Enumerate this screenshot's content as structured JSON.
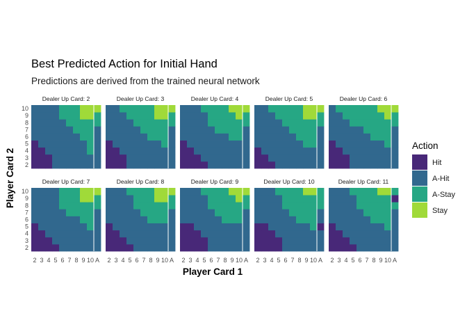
{
  "chart_data": {
    "type": "heatmap",
    "title": "Best Predicted Action for Initial Hand",
    "subtitle": "Predictions are derived from the trained neural network",
    "xlabel": "Player Card 1",
    "ylabel": "Player Card 2",
    "x_categories": [
      "2",
      "3",
      "4",
      "5",
      "6",
      "7",
      "8",
      "9",
      "10",
      "A"
    ],
    "y_categories": [
      "2",
      "3",
      "4",
      "5",
      "6",
      "7",
      "8",
      "9",
      "10"
    ],
    "x_tick_labels": [
      "2",
      "3",
      "4",
      "5",
      "6",
      "7",
      "8",
      "9",
      "10",
      "A"
    ],
    "legend": {
      "title": "Action",
      "position": "right",
      "items": [
        {
          "label": "Hit",
          "color": "#482878"
        },
        {
          "label": "A-Hit",
          "color": "#31688e"
        },
        {
          "label": "A-Stay",
          "color": "#26a784"
        },
        {
          "label": "Stay",
          "color": "#a0da39"
        }
      ]
    },
    "grid": true,
    "panel_rows": [
      [
        {
          "label": "Dealer Up Card: 2",
          "rows": [
            "HHHAAAAAAA",
            "HHHAAAAAAA",
            "HHAAAAAASA",
            "HAAAAAAASA",
            "AAAAAAASSA",
            "AAAAAASSSA",
            "AAAAASSSSS",
            "AAAASSSTTS",
            "AAAASSSTTT"
          ]
        },
        {
          "label": "Dealer Up Card: 3",
          "rows": [
            "HHHAAAAAAA",
            "HHHAAAAAAA",
            "HHAAAAAAAA",
            "HAAAAAAASA",
            "AAAAAASSSA",
            "AAAAASSSSA",
            "AAAASSSSSS",
            "AAASSSSTTS",
            "AASSSSSTTT"
          ]
        },
        {
          "label": "Dealer Up Card: 4",
          "rows": [
            "HHHHAAAAAA",
            "HHHAAAAAAA",
            "HHAAAAAAAA",
            "HAAAAAAAAA",
            "AAAAAAASSA",
            "AAAAASSSSA",
            "AAAASSSSSS",
            "AAAASSSSTS",
            "AAASSSSTTT"
          ]
        },
        {
          "label": "Dealer Up Card: 5",
          "rows": [
            "HHHAAAAAAA",
            "HHAAAAAAAA",
            "HAAAAAAAAA",
            "AAAAAAASSA",
            "AAAAAASSSA",
            "AAAAASSSSA",
            "AAAASSSSSS",
            "AAASSSSTTS",
            "AASSSSSTTT"
          ]
        },
        {
          "label": "Dealer Up Card: 6",
          "rows": [
            "HHHAAAAAAA",
            "HHHAAAAAAA",
            "HHAAAAAAAA",
            "HAAAAAAASA",
            "AAAAAASSSA",
            "AAAAASSSSA",
            "AAASSSSSSS",
            "AASSSSSSTS",
            "ASSSSSSTTT"
          ]
        }
      ],
      [
        {
          "label": "Dealer Up Card: 7",
          "rows": [
            "HHHHAAAAAA",
            "HHHAAAAAAA",
            "HHAAAAAAAA",
            "HAAAAAAASA",
            "AAAAAAASSA",
            "AAAAASSSSA",
            "AAAASSSSSS",
            "AAAASSSTTS",
            "AAAASSSTTT"
          ]
        },
        {
          "label": "Dealer Up Card: 8",
          "rows": [
            "HHHHAAAAAA",
            "HHHAAAAAAA",
            "HHAAAAAAAA",
            "HAAAAAAAAA",
            "AAAAAASSSA",
            "AAAAASSSSA",
            "AAAASSSSSS",
            "AAAASSSTTS",
            "AAASSSSTTT"
          ]
        },
        {
          "label": "Dealer Up Card: 9",
          "rows": [
            "HHHHAAAAAA",
            "HHHHAAAAAA",
            "HHHAAAAAAA",
            "HHAAAAAAAA",
            "AAAAAASSSA",
            "AAAAASSSSA",
            "AAAASSSSSS",
            "AAAASSSSTS",
            "AAASSSSTTT"
          ]
        },
        {
          "label": "Dealer Up Card: 10",
          "rows": [
            "HHHHAAAAAA",
            "HHHHAAAAAA",
            "HHHAAAAAAA",
            "HHAAAAAASH",
            "AAAAAASSSA",
            "AAAAASSSSA",
            "AAAASSSSSS",
            "AAAASSSSSS",
            "AAASSSSTTS"
          ]
        },
        {
          "label": "Dealer Up Card: 11",
          "rows": [
            "HHHHAAAAAA",
            "HHHAAAAAAA",
            "HHAAAAAAAA",
            "HAAAAAAASA",
            "AAAAAASSSA",
            "AAAAASSSSA",
            "AAAASSSSSS",
            "AAAASSSSSH",
            "AAASSSSTTS"
          ]
        }
      ]
    ]
  }
}
